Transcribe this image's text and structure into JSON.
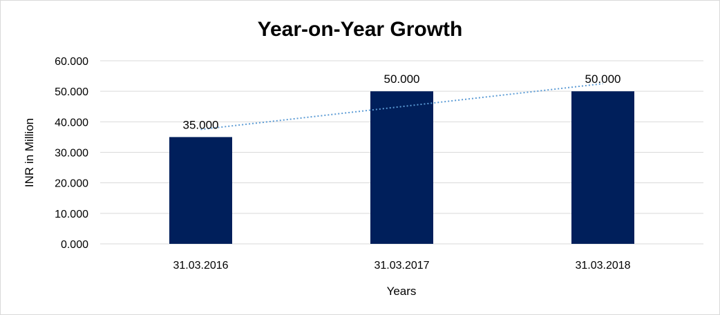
{
  "chart_data": {
    "type": "bar",
    "title": "Year-on-Year Growth",
    "xlabel": "Years",
    "ylabel": "INR in Million",
    "categories": [
      "31.03.2016",
      "31.03.2017",
      "31.03.2018"
    ],
    "values": [
      35000,
      50000,
      50000
    ],
    "data_labels": [
      "35.000",
      "50.000",
      "50.000"
    ],
    "ylim": [
      0,
      60000
    ],
    "yticks": [
      0,
      10000,
      20000,
      30000,
      40000,
      50000,
      60000
    ],
    "ytick_labels": [
      "0.000",
      "10.000",
      "20.000",
      "30.000",
      "40.000",
      "50.000",
      "60.000"
    ],
    "trendline": {
      "type": "linear",
      "style": "dotted",
      "start": 37500,
      "end": 52500
    },
    "grid": true,
    "legend": "none",
    "colors": {
      "bar": "#001f5b",
      "trendline": "#5b9bd5",
      "grid": "#d9d9d9"
    }
  }
}
